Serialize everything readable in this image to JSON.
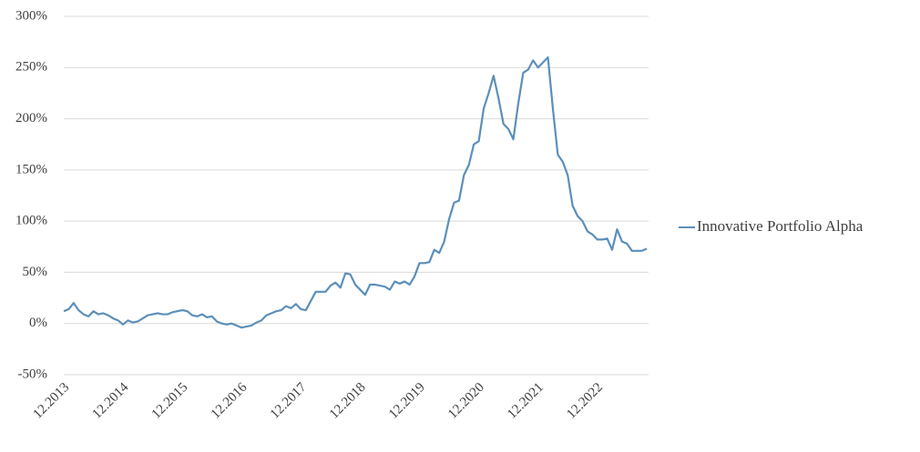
{
  "chart_data": {
    "type": "line",
    "categories": [
      "12.2013",
      null,
      null,
      null,
      null,
      null,
      null,
      null,
      null,
      null,
      null,
      null,
      "12.2014",
      null,
      null,
      null,
      null,
      null,
      null,
      null,
      null,
      null,
      null,
      null,
      "12.2015",
      null,
      null,
      null,
      null,
      null,
      null,
      null,
      null,
      null,
      null,
      null,
      "12.2016",
      null,
      null,
      null,
      null,
      null,
      null,
      null,
      null,
      null,
      null,
      null,
      "12.2017",
      null,
      null,
      null,
      null,
      null,
      null,
      null,
      null,
      null,
      null,
      null,
      "12.2018",
      null,
      null,
      null,
      null,
      null,
      null,
      null,
      null,
      null,
      null,
      null,
      "12.2019",
      null,
      null,
      null,
      null,
      null,
      null,
      null,
      null,
      null,
      null,
      null,
      "12.2020",
      null,
      null,
      null,
      null,
      null,
      null,
      null,
      null,
      null,
      null,
      null,
      "12.2021",
      null,
      null,
      null,
      null,
      null,
      null,
      null,
      null,
      null,
      null,
      null,
      "12.2022",
      null,
      null,
      null,
      null,
      null,
      null,
      null,
      null,
      null,
      null
    ],
    "series": [
      {
        "name": "Innovative Portfolio Alpha",
        "color": "#5b8fba",
        "values": [
          12,
          14,
          20,
          13,
          9,
          7,
          12,
          9,
          10,
          8,
          5,
          3,
          -1,
          3,
          1,
          2,
          5,
          8,
          9,
          10,
          9,
          9,
          11,
          12,
          13,
          12,
          8,
          7,
          9,
          6,
          7,
          2,
          0,
          -1,
          0,
          -2,
          -4,
          -3,
          -2,
          1,
          3,
          8,
          10,
          12,
          13,
          17,
          15,
          19,
          14,
          13,
          22,
          31,
          31,
          31,
          37,
          40,
          35,
          49,
          48,
          38,
          33,
          28,
          38,
          38,
          37,
          36,
          33,
          41,
          39,
          41,
          38,
          46,
          59,
          59,
          60,
          72,
          69,
          80,
          102,
          118,
          120,
          145,
          155,
          175,
          178,
          210,
          225,
          242,
          220,
          195,
          190,
          180,
          215,
          245,
          248,
          257,
          250,
          255,
          260,
          210,
          165,
          158,
          145,
          115,
          105,
          100,
          90,
          87,
          82,
          82,
          83,
          72,
          92,
          80,
          78,
          71,
          71,
          71,
          73
        ]
      }
    ],
    "ylim": [
      -50,
      300
    ],
    "yticks": [
      {
        "value": -50,
        "label": "-50%"
      },
      {
        "value": 0,
        "label": "0%"
      },
      {
        "value": 50,
        "label": "50%"
      },
      {
        "value": 100,
        "label": "100%"
      },
      {
        "value": 150,
        "label": "150%"
      },
      {
        "value": 200,
        "label": "200%"
      },
      {
        "value": 250,
        "label": "250%"
      },
      {
        "value": 300,
        "label": "300%"
      }
    ],
    "grid": true,
    "legend": "right"
  }
}
